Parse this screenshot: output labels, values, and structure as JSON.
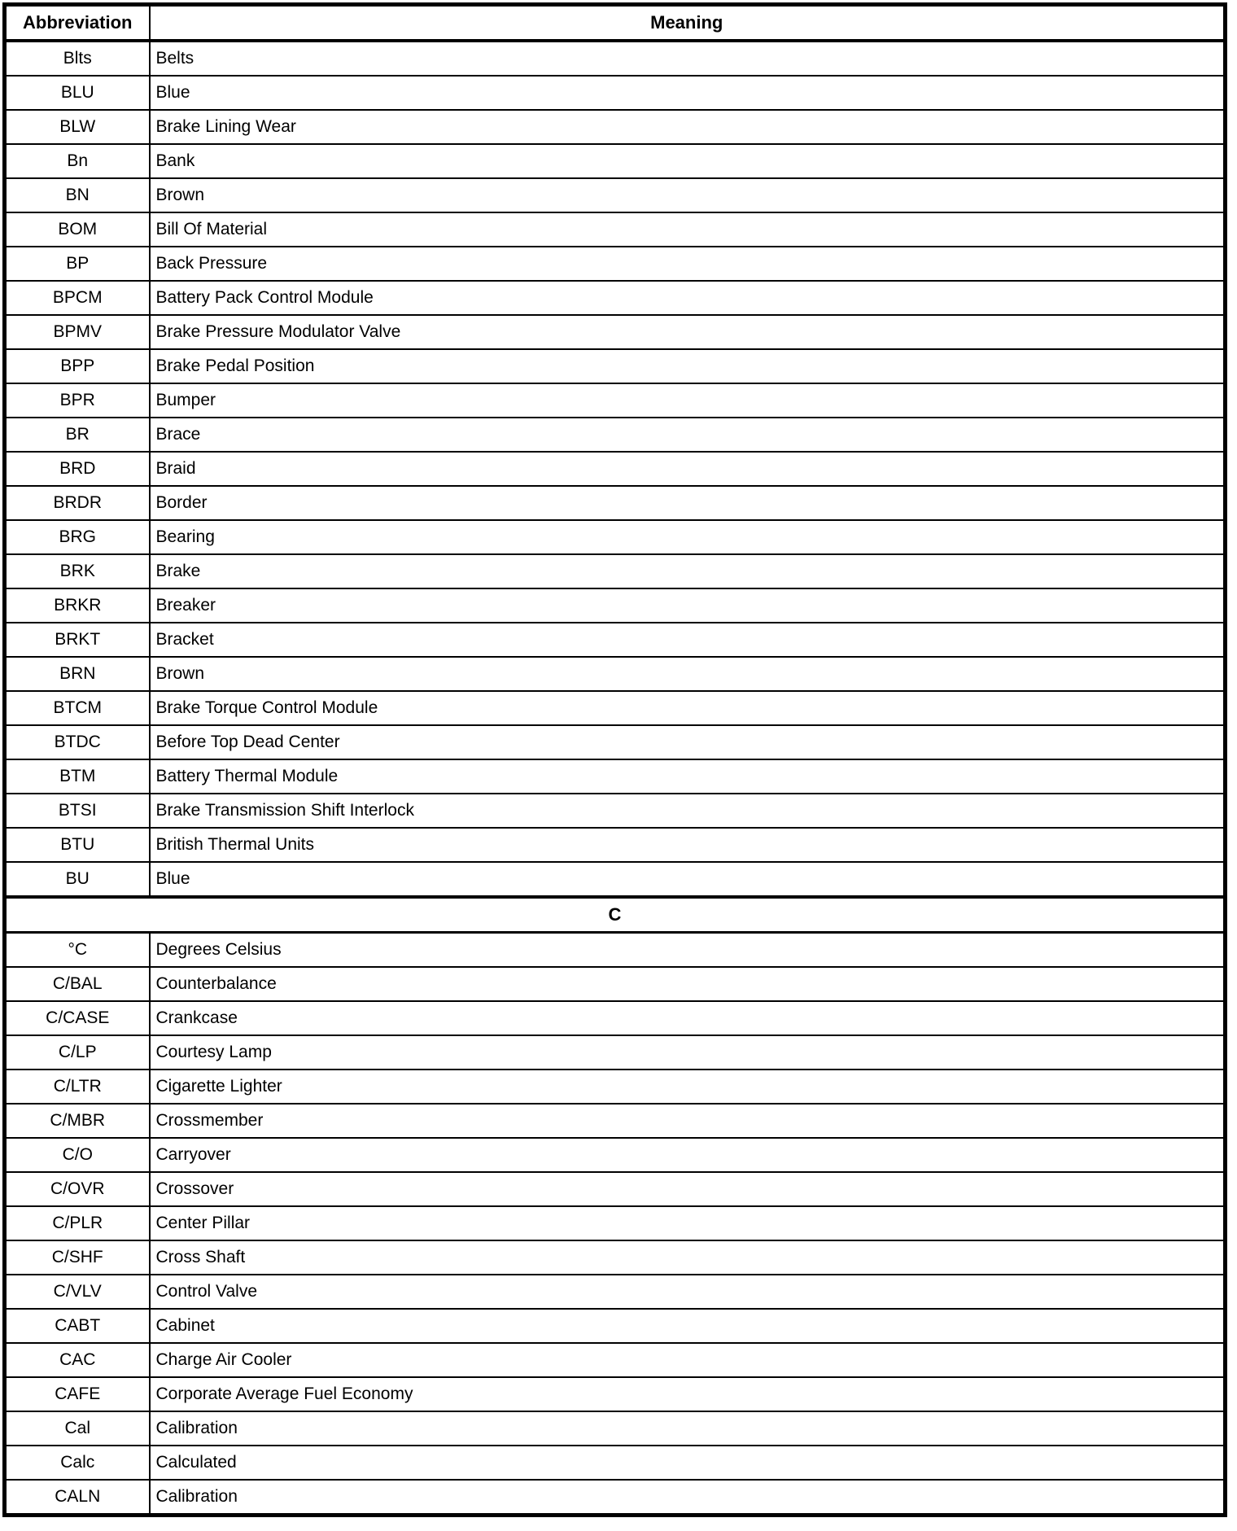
{
  "page": {
    "background_color": "#ffffff",
    "text_color": "#000000",
    "border_color": "#000000"
  },
  "table": {
    "columns": {
      "abbreviation": "Abbreviation",
      "meaning": "Meaning"
    },
    "sections": [
      {
        "header": null,
        "rows": [
          {
            "abbr": "Blts",
            "meaning": "Belts"
          },
          {
            "abbr": "BLU",
            "meaning": "Blue"
          },
          {
            "abbr": "BLW",
            "meaning": "Brake Lining Wear"
          },
          {
            "abbr": "Bn",
            "meaning": "Bank"
          },
          {
            "abbr": "BN",
            "meaning": "Brown"
          },
          {
            "abbr": "BOM",
            "meaning": "Bill Of Material"
          },
          {
            "abbr": "BP",
            "meaning": "Back Pressure"
          },
          {
            "abbr": "BPCM",
            "meaning": "Battery Pack Control Module"
          },
          {
            "abbr": "BPMV",
            "meaning": "Brake Pressure Modulator Valve"
          },
          {
            "abbr": "BPP",
            "meaning": "Brake Pedal Position"
          },
          {
            "abbr": "BPR",
            "meaning": "Bumper"
          },
          {
            "abbr": "BR",
            "meaning": "Brace"
          },
          {
            "abbr": "BRD",
            "meaning": "Braid"
          },
          {
            "abbr": "BRDR",
            "meaning": "Border"
          },
          {
            "abbr": "BRG",
            "meaning": "Bearing"
          },
          {
            "abbr": "BRK",
            "meaning": "Brake"
          },
          {
            "abbr": "BRKR",
            "meaning": "Breaker"
          },
          {
            "abbr": "BRKT",
            "meaning": "Bracket"
          },
          {
            "abbr": "BRN",
            "meaning": "Brown"
          },
          {
            "abbr": "BTCM",
            "meaning": "Brake Torque Control Module"
          },
          {
            "abbr": "BTDC",
            "meaning": "Before Top Dead Center"
          },
          {
            "abbr": "BTM",
            "meaning": "Battery Thermal Module"
          },
          {
            "abbr": "BTSI",
            "meaning": "Brake Transmission Shift Interlock"
          },
          {
            "abbr": "BTU",
            "meaning": "British Thermal Units"
          },
          {
            "abbr": "BU",
            "meaning": "Blue"
          }
        ]
      },
      {
        "header": "C",
        "rows": [
          {
            "abbr": "°C",
            "meaning": "Degrees Celsius"
          },
          {
            "abbr": "C/BAL",
            "meaning": "Counterbalance"
          },
          {
            "abbr": "C/CASE",
            "meaning": "Crankcase"
          },
          {
            "abbr": "C/LP",
            "meaning": "Courtesy Lamp"
          },
          {
            "abbr": "C/LTR",
            "meaning": "Cigarette Lighter"
          },
          {
            "abbr": "C/MBR",
            "meaning": "Crossmember"
          },
          {
            "abbr": "C/O",
            "meaning": "Carryover"
          },
          {
            "abbr": "C/OVR",
            "meaning": "Crossover"
          },
          {
            "abbr": "C/PLR",
            "meaning": "Center Pillar"
          },
          {
            "abbr": "C/SHF",
            "meaning": "Cross Shaft"
          },
          {
            "abbr": "C/VLV",
            "meaning": "Control Valve"
          },
          {
            "abbr": "CABT",
            "meaning": "Cabinet"
          },
          {
            "abbr": "CAC",
            "meaning": "Charge Air Cooler"
          },
          {
            "abbr": "CAFE",
            "meaning": "Corporate Average Fuel Economy"
          },
          {
            "abbr": "Cal",
            "meaning": "Calibration"
          },
          {
            "abbr": "Calc",
            "meaning": "Calculated"
          },
          {
            "abbr": "CALN",
            "meaning": "Calibration"
          }
        ]
      }
    ]
  }
}
